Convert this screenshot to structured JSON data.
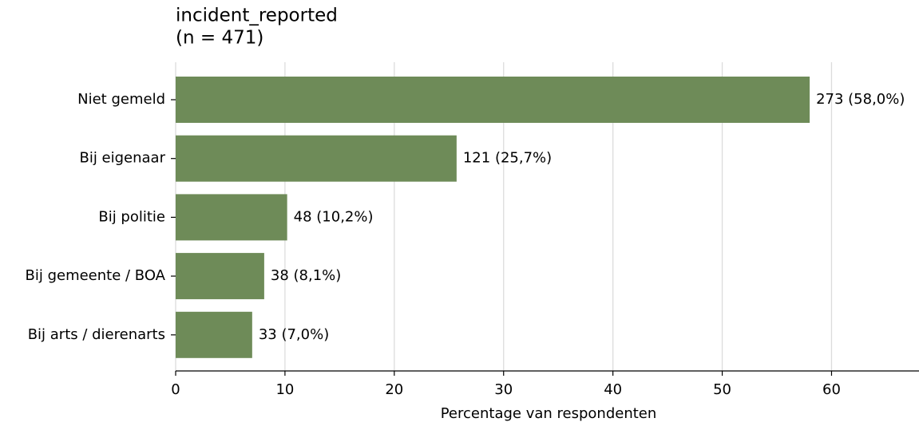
{
  "chart_data": {
    "type": "barh",
    "title": "incident_reported",
    "subtitle": "(n = 471)",
    "xlabel": "Percentage van respondenten",
    "categories": [
      "Niet gemeld",
      "Bij eigenaar",
      "Bij politie",
      "Bij gemeente / BOA",
      "Bij arts / dierenarts"
    ],
    "values": [
      58.0,
      25.7,
      10.2,
      8.1,
      7.0
    ],
    "value_labels": [
      "273 (58,0%)",
      "121 (25,7%)",
      "48 (10,2%)",
      "38 (8,1%)",
      "33 (7,0%)"
    ],
    "color": "#6e8b58",
    "xlim": [
      0,
      68
    ],
    "xticks": [
      0,
      10,
      20,
      30,
      40,
      50,
      60
    ],
    "grid": true
  }
}
